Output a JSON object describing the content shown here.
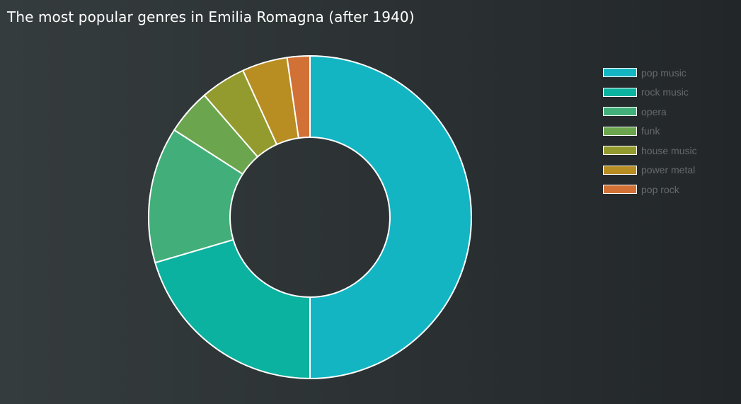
{
  "chart_data": {
    "type": "pie",
    "title": "The most popular genres in Emilia Romagna (after 1940)",
    "categories": [
      "pop music",
      "rock music",
      "opera",
      "funk",
      "house music",
      "power metal",
      "pop rock"
    ],
    "values": [
      22,
      9,
      6,
      2,
      2,
      2,
      1
    ],
    "colors": [
      "#13b5c3",
      "#0bb29f",
      "#42ae79",
      "#6ba64f",
      "#949b2e",
      "#b88d22",
      "#d17136"
    ],
    "legend_position": "top-right",
    "donut": true
  }
}
